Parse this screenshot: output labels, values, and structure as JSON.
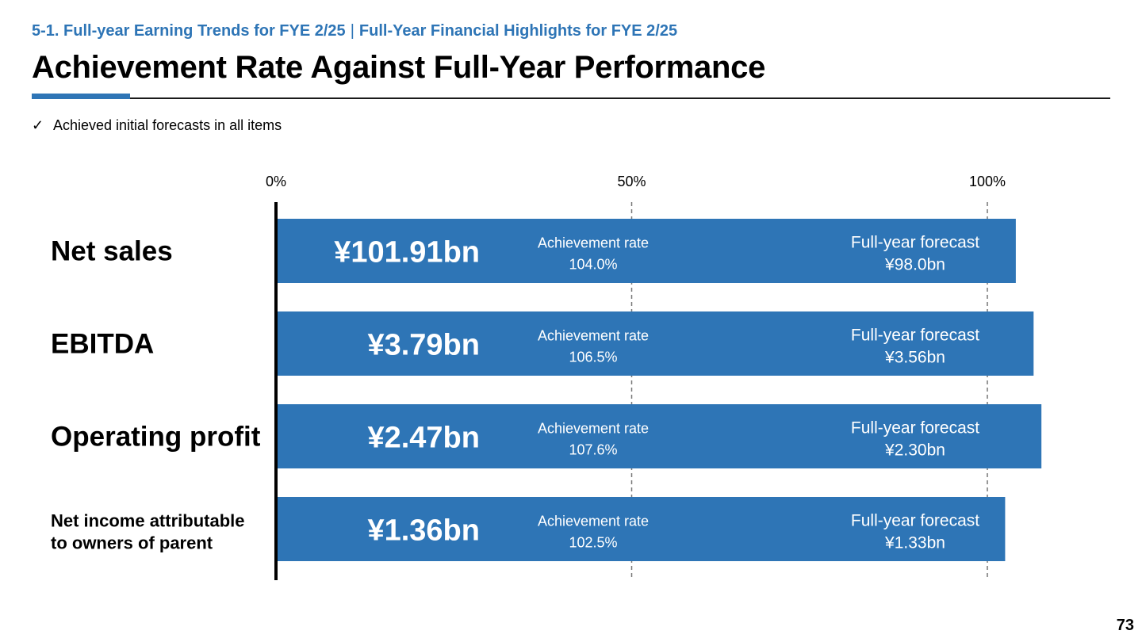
{
  "header": {
    "breadcrumb_section": "5-1. Full-year Earning Trends for FYE 2/25",
    "breadcrumb_separator": "|",
    "breadcrumb_page": "Full-Year Financial Highlights for FYE 2/25",
    "title": "Achievement Rate Against Full-Year Performance"
  },
  "bullet": {
    "check_icon": "✓",
    "text": "Achieved initial forecasts in all items"
  },
  "page_number": "73",
  "colors": {
    "accent": "#2e75b6",
    "bar": "#2e75b6",
    "rule": "#1a1a1a"
  },
  "chart_data": {
    "type": "bar",
    "orientation": "horizontal",
    "xlim": [
      0,
      100
    ],
    "ticks": [
      "0%",
      "50%",
      "100%"
    ],
    "tick_values": [
      0,
      50,
      100
    ],
    "gridlines": "dashed at 50% and 100%",
    "categories": [
      "Net sales",
      "EBITDA",
      "Operating profit",
      "Net income attributable to owners of parent"
    ],
    "category_label_lines": [
      [
        "Net sales"
      ],
      [
        "EBITDA"
      ],
      [
        "Operating profit"
      ],
      [
        "Net income attributable",
        "to owners of parent"
      ]
    ],
    "values": [
      104.0,
      106.5,
      107.6,
      102.5
    ],
    "actual_labels": [
      "¥101.91bn",
      "¥3.79bn",
      "¥2.47bn",
      "¥1.36bn"
    ],
    "achievement_rate_label": "Achievement rate",
    "achievement_rates": [
      "104.0%",
      "106.5%",
      "107.6%",
      "102.5%"
    ],
    "forecast_label": "Full-year forecast",
    "forecasts": [
      "¥98.0bn",
      "¥3.56bn",
      "¥2.30bn",
      "¥1.33bn"
    ]
  }
}
